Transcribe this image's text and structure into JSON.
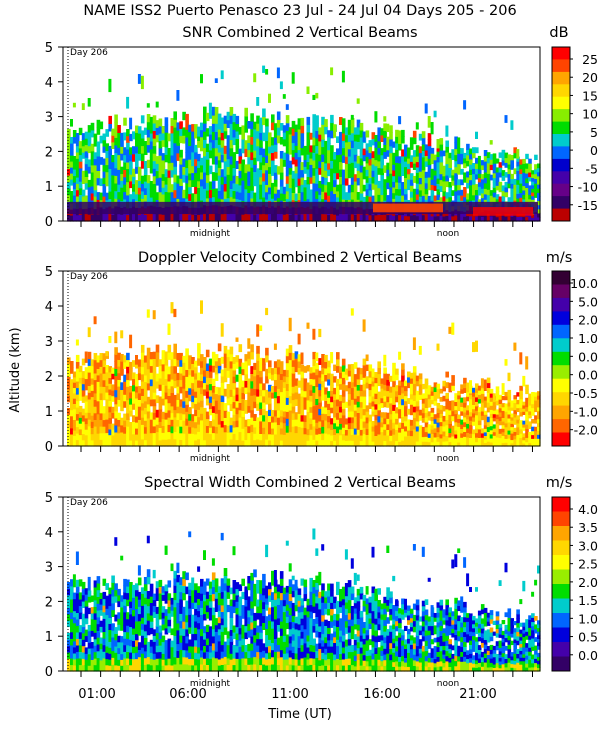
{
  "header": {
    "title": "NAME ISS2 Puerto Penasco  23 Jul - 24 Jul 04 Days 205 - 206"
  },
  "shared": {
    "ylabel": "Altitude (km)",
    "xlabel": "Time (UT)",
    "day_marker": "Day 206",
    "midnight_label": "midnight",
    "noon_label": "noon"
  },
  "chart_data": [
    {
      "type": "heatmap",
      "title": "SNR Combined 2 Vertical Beams",
      "unit": "dB",
      "y_ticks": [
        "0",
        "1",
        "2",
        "3",
        "4",
        "5"
      ],
      "ylim": [
        0,
        5
      ],
      "x_ticks": [],
      "colorbar": {
        "labels": [
          "25",
          "20",
          "15",
          "10",
          "5",
          "0",
          "-5",
          "-10",
          "-15"
        ],
        "colors": [
          "#ff0000",
          "#ff4400",
          "#ffa500",
          "#ffd700",
          "#ffff00",
          "#88ee00",
          "#00dd00",
          "#00cccc",
          "#0066ff",
          "#0000cc",
          "#4400aa",
          "#660088",
          "#330066",
          "#bb0000"
        ]
      }
    },
    {
      "type": "heatmap",
      "title": "Doppler Velocity Combined 2 Vertical Beams",
      "unit": "m/s",
      "y_ticks": [
        "0",
        "1",
        "2",
        "3",
        "4",
        "5"
      ],
      "ylim": [
        0,
        5
      ],
      "x_ticks": [],
      "colorbar": {
        "labels": [
          "10.0",
          "5.0",
          "2.0",
          "1.0",
          "0.0",
          "0.0",
          "-0.5",
          "-1.0",
          "-2.0"
        ],
        "colors": [
          "#330033",
          "#660066",
          "#4400aa",
          "#0000dd",
          "#0066ff",
          "#00cccc",
          "#00dd00",
          "#99ee00",
          "#ffff00",
          "#ffd700",
          "#ffa500",
          "#ff6600",
          "#ff0000"
        ]
      }
    },
    {
      "type": "heatmap",
      "title": "Spectral Width Combined 2 Vertical Beams",
      "unit": "m/s",
      "y_ticks": [
        "0",
        "1",
        "2",
        "3",
        "4",
        "5"
      ],
      "ylim": [
        0,
        5
      ],
      "x_ticks": [
        "01:00",
        "06:00",
        "11:00",
        "16:00",
        "21:00"
      ],
      "colorbar": {
        "labels": [
          "4.0",
          "3.5",
          "3.0",
          "2.5",
          "2.0",
          "1.5",
          "1.0",
          "0.5",
          "0.0"
        ],
        "colors": [
          "#ff0000",
          "#ff4400",
          "#ffa500",
          "#ffd700",
          "#ffff00",
          "#99ee00",
          "#00dd00",
          "#00cccc",
          "#0066ff",
          "#0000dd",
          "#4400aa",
          "#330066"
        ]
      }
    }
  ]
}
